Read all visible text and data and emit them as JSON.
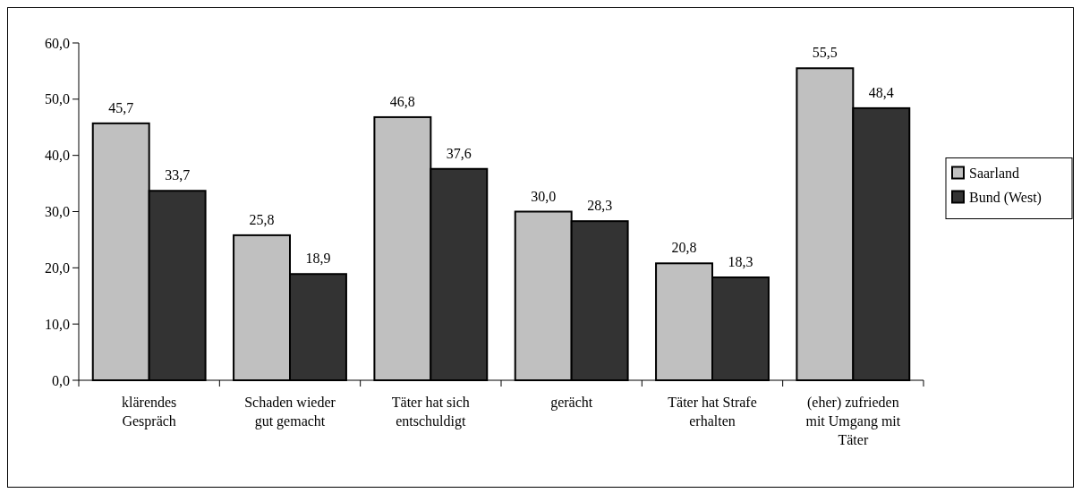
{
  "chart_data": {
    "type": "bar",
    "categories": [
      "klärendes Gespräch",
      "Schaden wieder gut gemacht",
      "Täter hat sich entschuldigt",
      "gerächt",
      "Täter hat Strafe erhalten",
      "(eher) zufrieden mit Umgang mit Täter"
    ],
    "series": [
      {
        "name": "Saarland",
        "color": "#c0c0c0",
        "values": [
          45.7,
          25.8,
          46.8,
          30.0,
          20.8,
          55.5
        ],
        "value_labels": [
          "45,7",
          "25,8",
          "46,8",
          "30,0",
          "20,8",
          "55,5"
        ]
      },
      {
        "name": "Bund (West)",
        "color": "#333333",
        "values": [
          33.7,
          18.9,
          37.6,
          28.3,
          18.3,
          48.4
        ],
        "value_labels": [
          "33,7",
          "18,9",
          "37,6",
          "28,3",
          "18,3",
          "48,4"
        ]
      }
    ],
    "ylim": [
      0,
      60
    ],
    "yticks": [
      {
        "value": 0,
        "label": "0,0"
      },
      {
        "value": 10,
        "label": "10,0"
      },
      {
        "value": 20,
        "label": "20,0"
      },
      {
        "value": 30,
        "label": "30,0"
      },
      {
        "value": 40,
        "label": "40,0"
      },
      {
        "value": 50,
        "label": "50,0"
      },
      {
        "value": 60,
        "label": "60,0"
      }
    ],
    "grid": false,
    "legend": "right"
  }
}
